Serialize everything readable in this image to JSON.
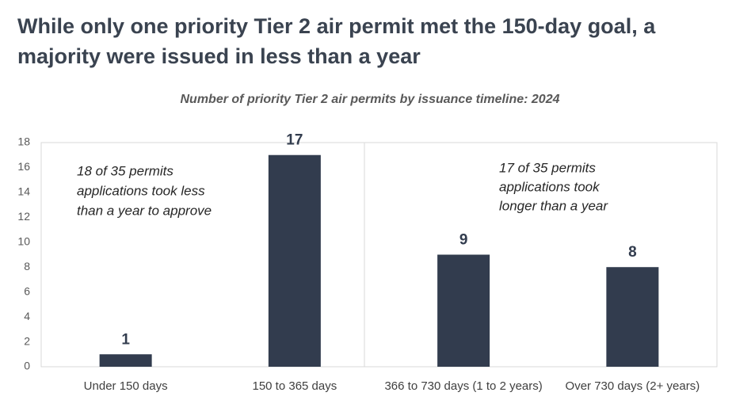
{
  "chart_data": {
    "type": "bar",
    "title": [
      "While only one priority Tier 2 air permit met the 150-day goal, a",
      "majority were issued in less than a year"
    ],
    "subtitle": "Number of priority Tier 2 air permits by issuance timeline: 2024",
    "categories": [
      "Under 150 days",
      "150 to 365 days",
      "366 to 730 days (1 to 2 years)",
      "Over 730 days (2+ years)"
    ],
    "values": [
      1,
      17,
      9,
      8
    ],
    "color": "#323c4e",
    "ylim": [
      0,
      18
    ],
    "yticks": [
      0,
      2,
      4,
      6,
      8,
      10,
      12,
      14,
      16,
      18
    ],
    "grid": false,
    "annotations": [
      {
        "lines": [
          "18 of 35 permits",
          "applications took less",
          "than a year to approve"
        ]
      },
      {
        "lines": [
          "17 of 35 permits",
          "applications took",
          "longer than a year"
        ]
      }
    ]
  }
}
